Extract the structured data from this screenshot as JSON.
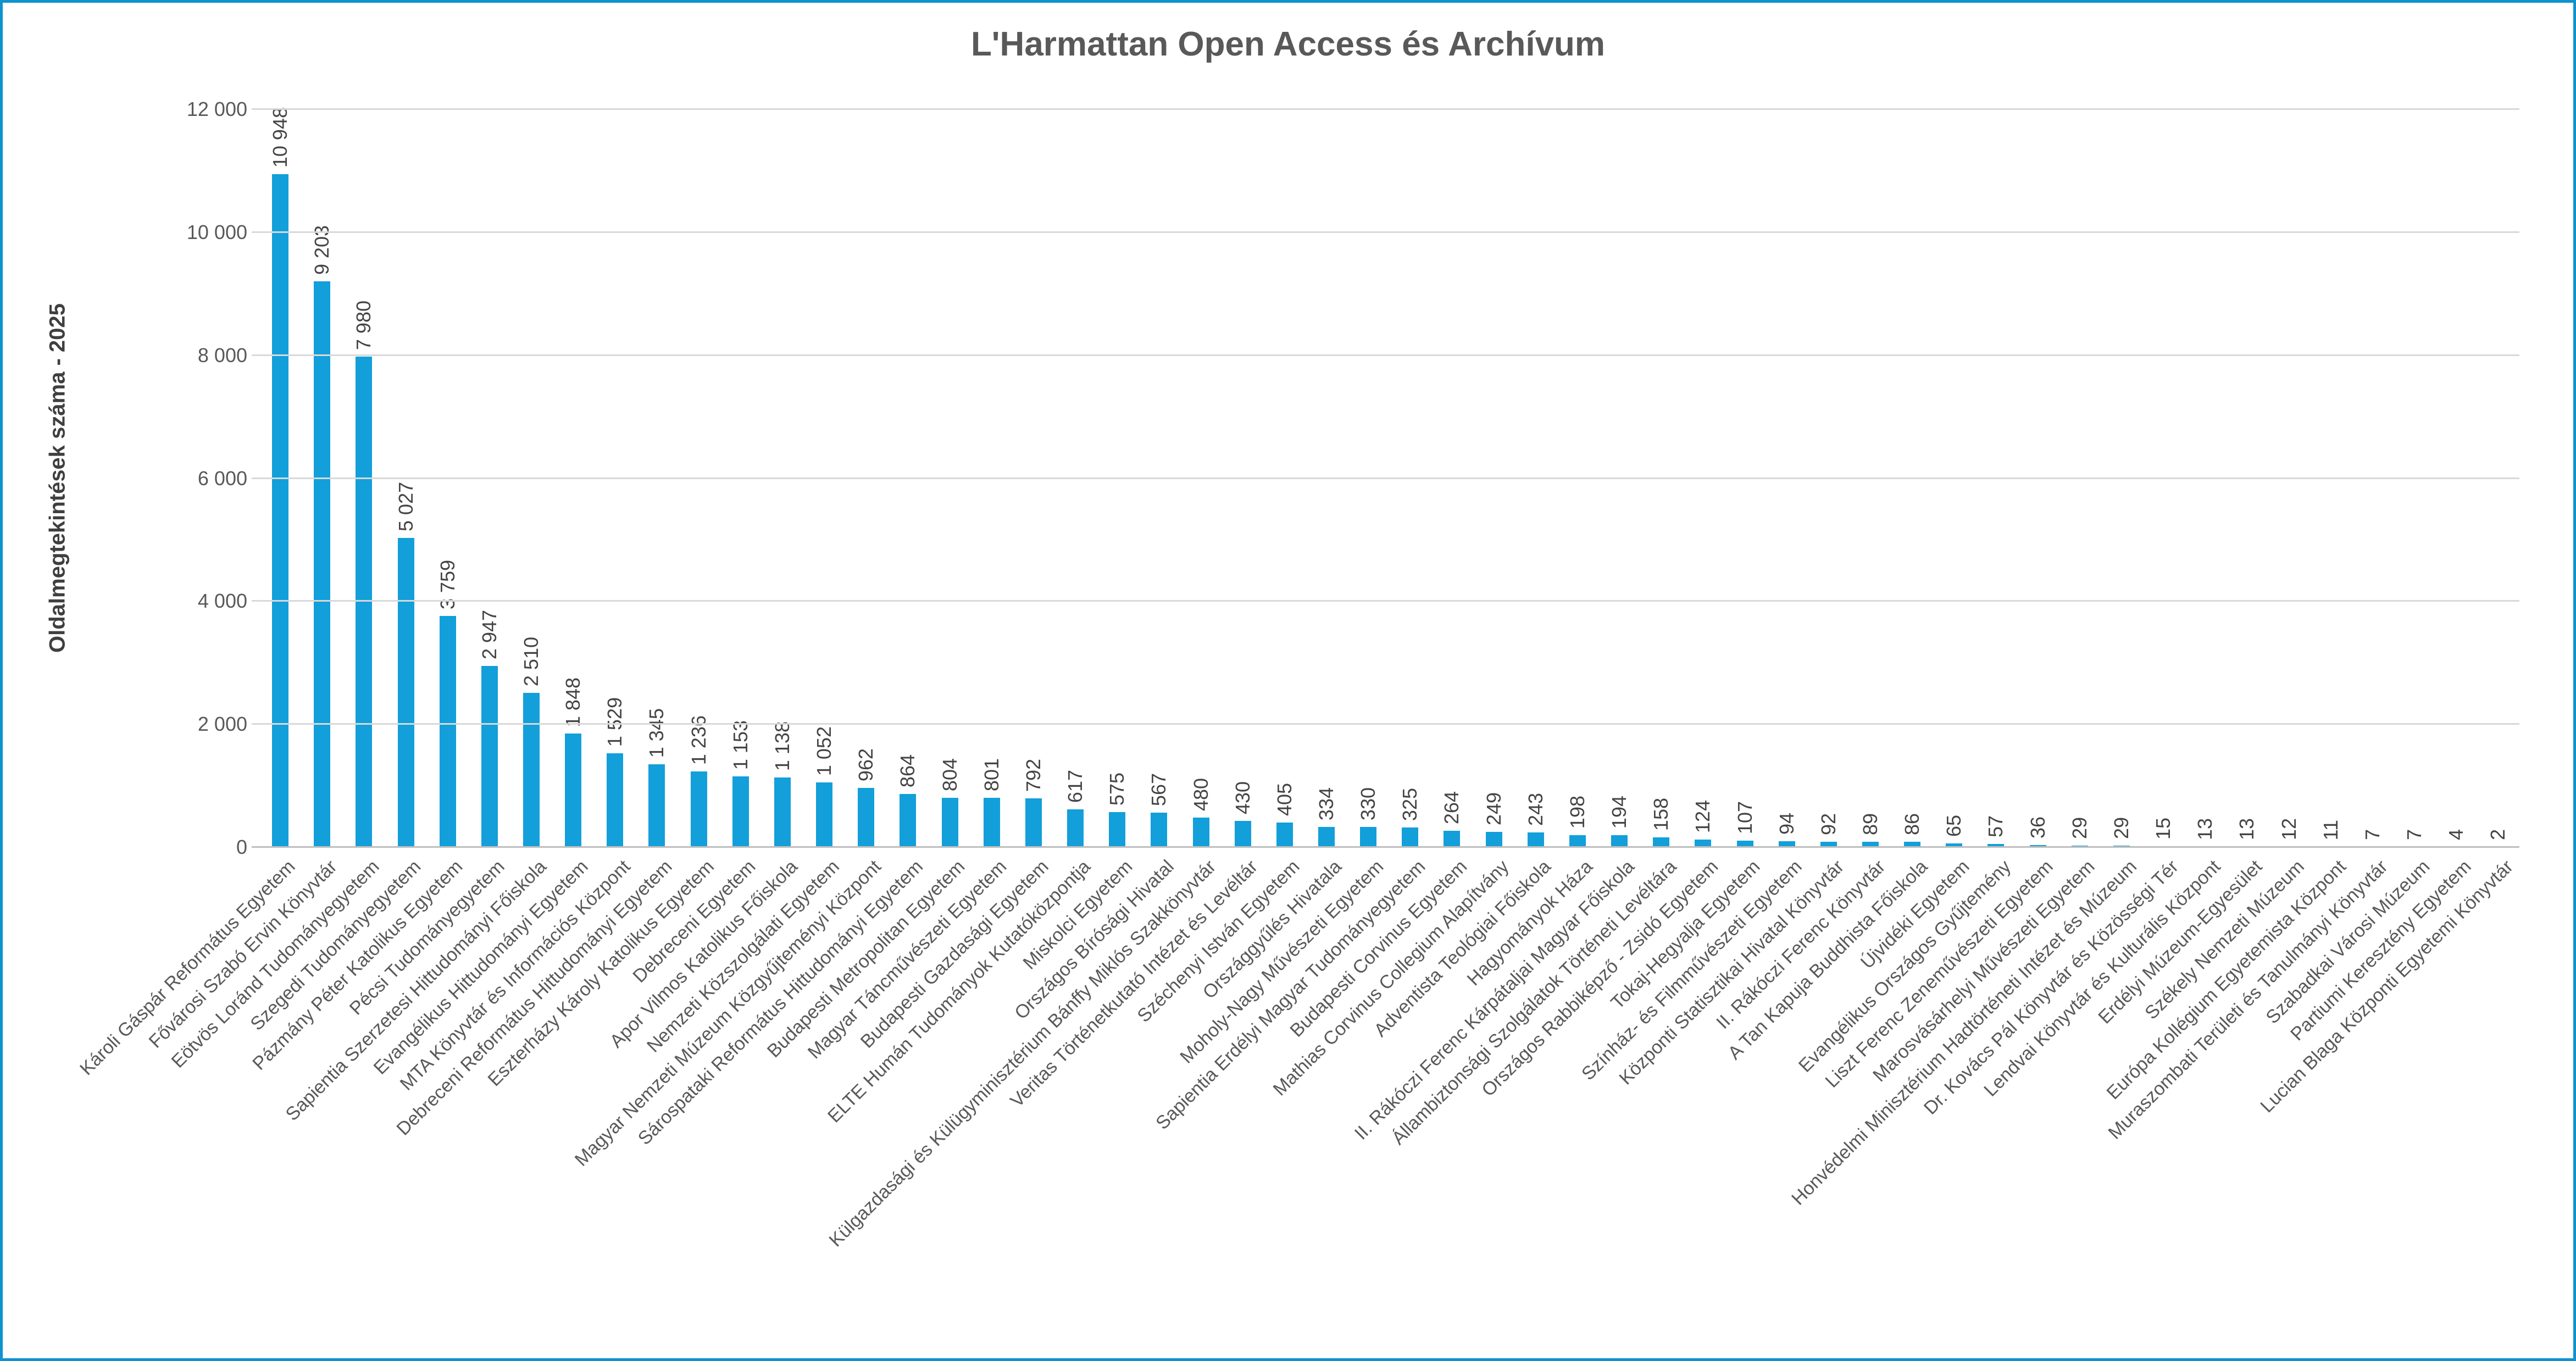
{
  "colors": {
    "bar": "#129FDA",
    "frame_border": "#0E93CE",
    "gridline": "#D9D9D9",
    "axis_line": "#BFBFBF",
    "title_text": "#595959",
    "value_label_text": "#444444"
  },
  "chart_data": {
    "type": "bar",
    "title": "L'Harmattan Open Access és Archívum",
    "xlabel": "",
    "ylabel": "Oldalmegtekintések száma - 2025",
    "ylim": [
      0,
      12000
    ],
    "ytick_step": 2000,
    "ytick_labels": [
      "0",
      "2 000",
      "4 000",
      "6 000",
      "8 000",
      "10 000",
      "12 000"
    ],
    "grid": true,
    "legend": false,
    "bar_value_label_rotation_deg": 90,
    "category_label_rotation_deg": 45,
    "categories": [
      "Károli Gáspár Református Egyetem",
      "Fővárosi Szabó Ervin Könyvtár",
      "Eötvös Loránd Tudományegyetem",
      "Szegedi Tudományegyetem",
      "Pázmány Péter Katolikus Egyetem",
      "Pécsi Tudományegyetem",
      "Sapientia Szerzetesi Hittudományi Főiskola",
      "Evangélikus Hittudományi Egyetem",
      "MTA Könyvtár és Információs Központ",
      "Debreceni Református Hittudományi Egyetem",
      "Eszterházy Károly Katolikus Egyetem",
      "Debreceni Egyetem",
      "Apor Vilmos Katolikus Főiskola",
      "Nemzeti Közszolgálati Egyetem",
      "Magyar Nemzeti Múzeum Közgyűjteményi Központ",
      "Sárospataki Református Hittudományi Egyetem",
      "Budapesti Metropolitan Egyetem",
      "Magyar Táncművészeti Egyetem",
      "Budapesti Gazdasági Egyetem",
      "ELTE Humán Tudományok Kutatóközpontja",
      "Miskolci Egyetem",
      "Országos Bírósági Hivatal",
      "Külgazdasági és Külügyminisztérium Bánffy Miklós Szakkönyvtár",
      "Veritas Történetkutató Intézet és Levéltár",
      "Széchenyi István Egyetem",
      "Országgyűlés Hivatala",
      "Moholy-Nagy Művészeti Egyetem",
      "Sapientia Erdélyi Magyar Tudományegyetem",
      "Budapesti Corvinus Egyetem",
      "Mathias Corvinus Collegium Alapítvány",
      "Adventista Teológiai Főiskola",
      "Hagyományok Háza",
      "II. Rákóczi Ferenc Kárpátaljai Magyar Főiskola",
      "Állambiztonsági Szolgálatok Történeti Levéltára",
      "Országos Rabbiképző - Zsidó Egyetem",
      "Tokaj-Hegyalja Egyetem",
      "Színház- és Filmművészeti Egyetem",
      "Központi Statisztikai Hivatal Könyvtár",
      "II. Rákóczi Ferenc Könyvtár",
      "A Tan Kapuja Buddhista Főiskola",
      "Újvidéki Egyetem",
      "Evangélikus Országos Gyűjtemény",
      "Liszt Ferenc Zeneművészeti Egyetem",
      "Marosvásárhelyi Művészeti Egyetem",
      "Honvédelmi Minisztérium Hadtörténeti Intézet és Múzeum",
      "Dr. Kovács Pál Könyvtár és Közösségi Tér",
      "Lendvai Könyvtár és Kulturális Központ",
      "Erdélyi Múzeum-Egyesület",
      "Székely Nemzeti Múzeum",
      "Európa Kollégium Egyetemista Központ",
      "Muraszombati Területi és Tanulmányi Könyvtár",
      "Szabadkai Városi Múzeum",
      "Partiumi Keresztény Egyetem",
      "Lucian Blaga Központi Egyetemi Könyvtár"
    ],
    "values": [
      10948,
      9203,
      7980,
      5027,
      3759,
      2947,
      2510,
      1848,
      1529,
      1345,
      1236,
      1153,
      1138,
      1052,
      962,
      864,
      804,
      801,
      792,
      617,
      575,
      567,
      480,
      430,
      405,
      334,
      330,
      325,
      264,
      249,
      243,
      198,
      194,
      158,
      124,
      107,
      94,
      92,
      89,
      86,
      65,
      57,
      36,
      29,
      29,
      15,
      13,
      13,
      12,
      11,
      7,
      7,
      4,
      2
    ],
    "value_labels": [
      "10 948",
      "9 203",
      "7 980",
      "5 027",
      "3 759",
      "2 947",
      "2 510",
      "1 848",
      "1 529",
      "1 345",
      "1 236",
      "1 153",
      "1 138",
      "1 052",
      "962",
      "864",
      "804",
      "801",
      "792",
      "617",
      "575",
      "567",
      "480",
      "430",
      "405",
      "334",
      "330",
      "325",
      "264",
      "249",
      "243",
      "198",
      "194",
      "158",
      "124",
      "107",
      "94",
      "92",
      "89",
      "86",
      "65",
      "57",
      "36",
      "29",
      "29",
      "15",
      "13",
      "13",
      "12",
      "11",
      "7",
      "7",
      "4",
      "2"
    ]
  }
}
